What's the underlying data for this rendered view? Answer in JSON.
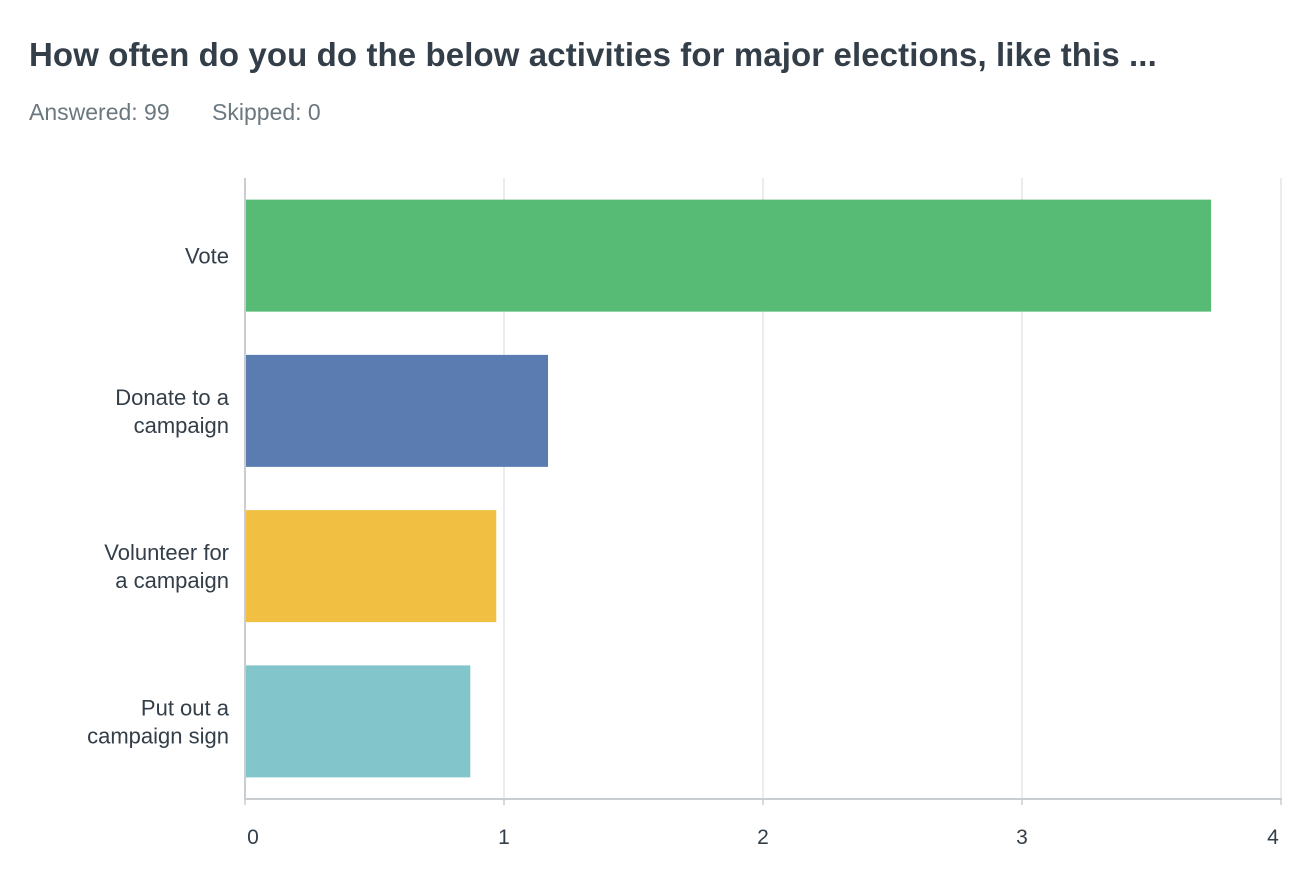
{
  "header": {
    "title": "How often do you do the below activities for major elections, like this ...",
    "answered_label": "Answered: 99",
    "skipped_label": "Skipped: 0"
  },
  "chart_data": {
    "type": "bar",
    "orientation": "horizontal",
    "categories": [
      [
        "Vote"
      ],
      [
        "Donate to a",
        "campaign"
      ],
      [
        "Volunteer for",
        "a campaign"
      ],
      [
        "Put out a",
        "campaign sign"
      ]
    ],
    "values": [
      3.73,
      1.17,
      0.97,
      0.87
    ],
    "colors": [
      "#57bb76",
      "#5a7cb1",
      "#f1bf42",
      "#82c6cb"
    ],
    "xlim": [
      0,
      4
    ],
    "xticks": [
      "0",
      "1",
      "2",
      "3",
      "4"
    ],
    "grid": true,
    "title": "",
    "xlabel": "",
    "ylabel": ""
  }
}
